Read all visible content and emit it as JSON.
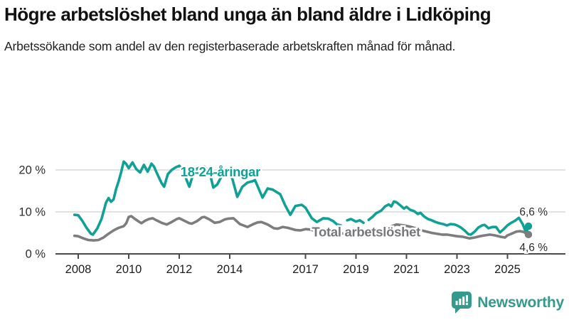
{
  "header": {
    "title": "Högre arbetslöshet bland unga än bland äldre i Lidköping",
    "subtitle": "Arbetssökande som andel av den registerbaserade arbetskraften månad för månad."
  },
  "footer": {
    "brand_name": "Newsworthy"
  },
  "colors": {
    "youth_line": "#10a195",
    "total_line": "#7d7d80",
    "grid": "#d8d8d8",
    "axis": "#4a4a4a",
    "tick_text": "#1c1c1c",
    "y_tick_text": "#2f2f2f",
    "end_label_text": "#2b2b2b",
    "brand_teal": "#35998c"
  },
  "chart_data": {
    "type": "line",
    "title": "Högre arbetslöshet bland unga än bland äldre i Lidköping",
    "subtitle": "Arbetssökande som andel av den registerbaserade arbetskraften månad för månad.",
    "unit": "%",
    "grid": "horizontal",
    "legend_position": "inline-labels",
    "x_axis": {
      "ticks": [
        2008,
        2010,
        2012,
        2014,
        2017,
        2019,
        2021,
        2023,
        2025
      ],
      "range": [
        2007.6,
        2026.3
      ]
    },
    "y_axis": {
      "range": [
        0,
        24
      ],
      "ticks": [
        {
          "value": 0,
          "label": "0 %"
        },
        {
          "value": 10,
          "label": "10 %"
        },
        {
          "value": 20,
          "label": "20 %"
        }
      ]
    },
    "series": [
      {
        "name": "18-24-åringar",
        "color": "#10a195",
        "end_label": "6,6 %",
        "end_value": 6.6,
        "end_label_side": "above",
        "label_anchor": {
          "year": 2012.05,
          "value": 18.45
        },
        "points": [
          [
            2007.85,
            9.3
          ],
          [
            2008.0,
            9.2
          ],
          [
            2008.17,
            7.8
          ],
          [
            2008.33,
            6.2
          ],
          [
            2008.5,
            4.8
          ],
          [
            2008.58,
            4.6
          ],
          [
            2008.75,
            6.0
          ],
          [
            2008.92,
            8.3
          ],
          [
            2009.0,
            10.0
          ],
          [
            2009.1,
            12.2
          ],
          [
            2009.2,
            13.3
          ],
          [
            2009.3,
            12.4
          ],
          [
            2009.4,
            13.0
          ],
          [
            2009.5,
            15.5
          ],
          [
            2009.6,
            17.3
          ],
          [
            2009.7,
            19.5
          ],
          [
            2009.8,
            22.0
          ],
          [
            2009.9,
            21.4
          ],
          [
            2010.0,
            20.4
          ],
          [
            2010.15,
            21.8
          ],
          [
            2010.3,
            20.2
          ],
          [
            2010.45,
            19.4
          ],
          [
            2010.6,
            21.2
          ],
          [
            2010.75,
            19.6
          ],
          [
            2010.9,
            21.5
          ],
          [
            2011.0,
            20.8
          ],
          [
            2011.15,
            18.8
          ],
          [
            2011.3,
            16.9
          ],
          [
            2011.4,
            16.0
          ],
          [
            2011.55,
            19.0
          ],
          [
            2011.7,
            20.0
          ],
          [
            2011.85,
            20.6
          ],
          [
            2012.0,
            21.0
          ],
          [
            2012.15,
            20.0
          ],
          [
            2012.3,
            17.5
          ],
          [
            2012.4,
            16.0
          ],
          [
            2012.55,
            19.0
          ],
          [
            2012.7,
            20.3
          ],
          [
            2012.85,
            20.6
          ],
          [
            2013.0,
            20.8
          ],
          [
            2013.2,
            19.5
          ],
          [
            2013.35,
            15.8
          ],
          [
            2013.5,
            16.5
          ],
          [
            2013.7,
            18.8
          ],
          [
            2013.9,
            19.3
          ],
          [
            2014.1,
            18.0
          ],
          [
            2014.3,
            13.6
          ],
          [
            2014.5,
            16.0
          ],
          [
            2014.7,
            17.0
          ],
          [
            2014.9,
            17.3
          ],
          [
            2015.0,
            17.6
          ],
          [
            2015.3,
            13.4
          ],
          [
            2015.5,
            15.6
          ],
          [
            2015.7,
            15.3
          ],
          [
            2016.0,
            14.2
          ],
          [
            2016.2,
            11.5
          ],
          [
            2016.4,
            9.3
          ],
          [
            2016.6,
            11.4
          ],
          [
            2016.85,
            11.7
          ],
          [
            2017.0,
            11.0
          ],
          [
            2017.25,
            8.5
          ],
          [
            2017.45,
            7.6
          ],
          [
            2017.7,
            8.5
          ],
          [
            2017.9,
            8.4
          ],
          [
            2018.1,
            7.8
          ],
          [
            2018.25,
            7.0
          ],
          [
            2018.4,
            6.8
          ],
          null,
          [
            2018.65,
            8.0
          ],
          [
            2018.8,
            8.3
          ],
          [
            2019.0,
            7.7
          ],
          [
            2019.15,
            8.0
          ],
          [
            2019.3,
            7.4
          ],
          null,
          [
            2019.5,
            8.1
          ],
          [
            2019.65,
            8.8
          ],
          [
            2019.8,
            9.7
          ],
          [
            2020.0,
            10.3
          ],
          [
            2020.15,
            11.3
          ],
          [
            2020.3,
            11.8
          ],
          [
            2020.4,
            11.3
          ],
          [
            2020.5,
            12.5
          ],
          [
            2020.6,
            12.3
          ],
          [
            2020.75,
            11.6
          ],
          [
            2020.9,
            10.8
          ],
          [
            2021.0,
            11.2
          ],
          [
            2021.15,
            10.5
          ],
          [
            2021.3,
            10.2
          ],
          [
            2021.45,
            9.5
          ],
          [
            2021.55,
            9.8
          ],
          [
            2021.7,
            8.9
          ],
          [
            2021.85,
            8.3
          ],
          [
            2022.0,
            8.0
          ],
          [
            2022.15,
            7.6
          ],
          [
            2022.3,
            7.3
          ],
          [
            2022.45,
            7.1
          ],
          [
            2022.6,
            6.8
          ],
          [
            2022.75,
            7.1
          ],
          [
            2022.9,
            7.0
          ],
          [
            2023.0,
            6.8
          ],
          [
            2023.15,
            6.3
          ],
          [
            2023.3,
            5.6
          ],
          [
            2023.45,
            4.7
          ],
          [
            2023.55,
            4.6
          ],
          [
            2023.7,
            5.3
          ],
          [
            2023.85,
            6.3
          ],
          [
            2024.0,
            6.8
          ],
          [
            2024.1,
            6.9
          ],
          [
            2024.25,
            6.1
          ],
          [
            2024.4,
            6.4
          ],
          [
            2024.55,
            6.4
          ],
          [
            2024.7,
            5.1
          ],
          [
            2024.85,
            5.9
          ],
          [
            2025.0,
            6.8
          ],
          [
            2025.15,
            7.4
          ],
          [
            2025.3,
            7.9
          ],
          [
            2025.45,
            8.6
          ],
          [
            2025.6,
            7.1
          ],
          [
            2025.7,
            5.6
          ],
          [
            2025.75,
            5.1
          ],
          [
            2025.83,
            6.6
          ]
        ]
      },
      {
        "name": "Total arbetslöshet",
        "color": "#7d7d80",
        "end_label": "4,6 %",
        "end_value": 4.6,
        "end_label_side": "below",
        "label_anchor": {
          "year": 2017.25,
          "value": 4.15
        },
        "points": [
          [
            2007.85,
            4.3
          ],
          [
            2008.0,
            4.2
          ],
          [
            2008.2,
            3.7
          ],
          [
            2008.4,
            3.3
          ],
          [
            2008.6,
            3.2
          ],
          [
            2008.8,
            3.3
          ],
          [
            2009.0,
            3.9
          ],
          [
            2009.2,
            4.8
          ],
          [
            2009.4,
            5.6
          ],
          [
            2009.6,
            6.2
          ],
          [
            2009.8,
            6.6
          ],
          [
            2009.9,
            7.3
          ],
          [
            2010.0,
            8.8
          ],
          [
            2010.1,
            9.0
          ],
          [
            2010.25,
            8.3
          ],
          [
            2010.4,
            7.7
          ],
          [
            2010.5,
            7.3
          ],
          [
            2010.65,
            7.9
          ],
          [
            2010.8,
            8.3
          ],
          [
            2010.95,
            8.5
          ],
          [
            2011.1,
            8.0
          ],
          [
            2011.3,
            7.4
          ],
          [
            2011.5,
            7.0
          ],
          [
            2011.7,
            7.6
          ],
          [
            2011.9,
            8.3
          ],
          [
            2012.0,
            8.5
          ],
          [
            2012.2,
            7.9
          ],
          [
            2012.4,
            7.3
          ],
          [
            2012.5,
            7.2
          ],
          [
            2012.7,
            7.8
          ],
          [
            2012.9,
            8.7
          ],
          [
            2013.0,
            8.8
          ],
          [
            2013.2,
            8.2
          ],
          [
            2013.4,
            7.4
          ],
          [
            2013.6,
            7.6
          ],
          [
            2013.8,
            8.2
          ],
          [
            2013.95,
            8.4
          ],
          [
            2014.15,
            8.5
          ],
          [
            2014.4,
            7.1
          ],
          [
            2014.7,
            6.4
          ],
          [
            2014.9,
            7.0
          ],
          [
            2015.1,
            7.5
          ],
          [
            2015.25,
            7.6
          ],
          [
            2015.5,
            7.0
          ],
          [
            2015.75,
            6.1
          ],
          [
            2015.9,
            6.0
          ],
          [
            2016.1,
            6.4
          ],
          [
            2016.3,
            6.2
          ],
          [
            2016.6,
            5.7
          ],
          [
            2016.8,
            5.6
          ],
          [
            2017.0,
            5.9
          ],
          [
            2017.2,
            5.8
          ],
          [
            2017.4,
            5.4
          ],
          [
            2017.6,
            5.5
          ],
          [
            2017.8,
            5.3
          ],
          [
            2018.2,
            5.0
          ],
          [
            2018.6,
            4.8
          ],
          [
            2019.0,
            4.7
          ],
          [
            2019.5,
            4.6
          ],
          [
            2019.9,
            5.0
          ],
          [
            2020.3,
            6.3
          ],
          [
            2020.6,
            7.0
          ],
          [
            2020.9,
            6.8
          ],
          [
            2021.2,
            6.4
          ],
          [
            2021.6,
            5.6
          ],
          [
            2022.0,
            5.0
          ],
          [
            2022.4,
            4.6
          ],
          [
            2022.6,
            4.6
          ],
          [
            2022.8,
            4.4
          ],
          [
            2023.0,
            4.2
          ],
          [
            2023.2,
            4.1
          ],
          [
            2023.5,
            3.7
          ],
          [
            2023.7,
            3.9
          ],
          [
            2023.9,
            4.2
          ],
          [
            2024.1,
            4.4
          ],
          [
            2024.3,
            4.6
          ],
          [
            2024.5,
            4.4
          ],
          [
            2024.7,
            4.1
          ],
          [
            2024.9,
            3.9
          ],
          [
            2025.0,
            4.4
          ],
          [
            2025.2,
            4.9
          ],
          [
            2025.35,
            5.3
          ],
          [
            2025.5,
            5.4
          ],
          [
            2025.65,
            5.2
          ],
          [
            2025.75,
            4.8
          ],
          [
            2025.83,
            4.6
          ]
        ]
      }
    ]
  }
}
